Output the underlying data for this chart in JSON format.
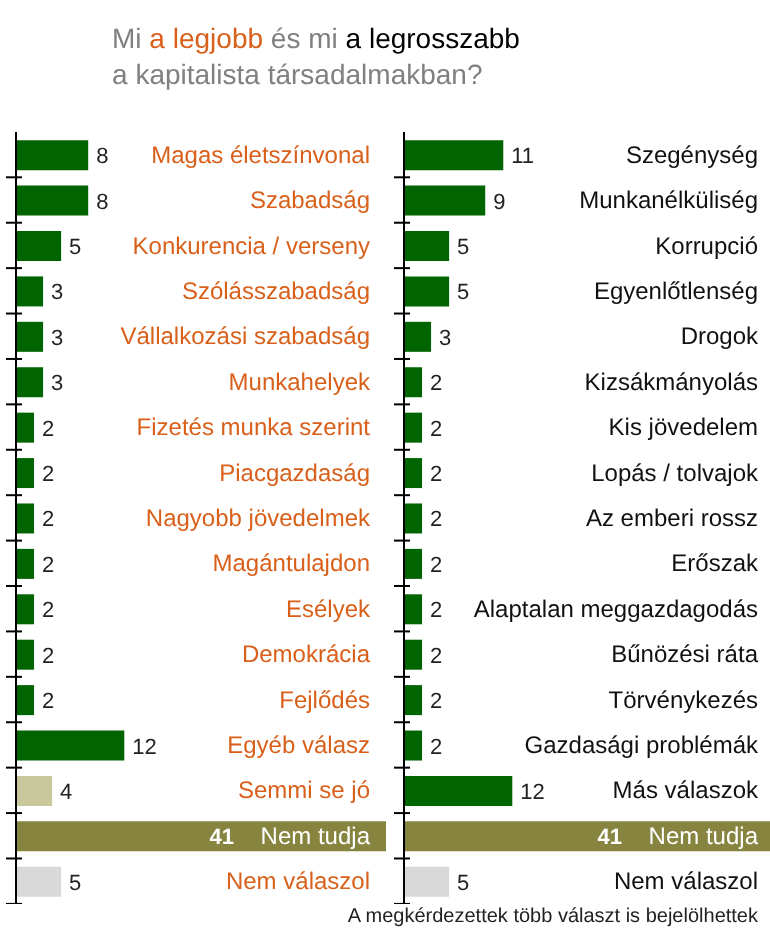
{
  "chart_data": [
    {
      "type": "bar",
      "orientation": "horizontal",
      "title": "Mi a legjobb és mi a legrosszabb a kapitalista társadalmakban?",
      "categories": [
        "Magas életszínvonal",
        "Szabadság",
        "Konkurencia / verseny",
        "Szólásszabadság",
        "Vállalkozási szabadság",
        "Munkahelyek",
        "Fizetés munka szerint",
        "Piacgazdaság",
        "Nagyobb jövedelmek",
        "Magántulajdon",
        "Esélyek",
        "Demokrácia",
        "Fejlődés",
        "Egyéb válasz",
        "Semmi se jó",
        "Nem tudja",
        "Nem válaszol"
      ],
      "values": [
        8,
        8,
        5,
        3,
        3,
        3,
        2,
        2,
        2,
        2,
        2,
        2,
        2,
        12,
        4,
        41,
        5
      ],
      "colors": [
        "#006400",
        "#006400",
        "#006400",
        "#006400",
        "#006400",
        "#006400",
        "#006400",
        "#006400",
        "#006400",
        "#006400",
        "#006400",
        "#006400",
        "#006400",
        "#006400",
        "#c9c79c",
        "#878440",
        "#d9d9d9"
      ],
      "xlim": [
        0,
        41
      ],
      "tick_labels": "y",
      "data_labels": true
    },
    {
      "type": "bar",
      "orientation": "horizontal",
      "categories": [
        "Szegénység",
        "Munkanélküliség",
        "Korrupció",
        "Egyenlőtlenség",
        "Drogok",
        "Kizsákmányolás",
        "Kis jövedelem",
        "Lopás /  tolvajok",
        "Az emberi rossz",
        "Erőszak",
        "Alaptalan meggazdagodás",
        "Bűnözési ráta",
        "Törvénykezés",
        "Gazdasági problémák",
        "Más válaszok",
        "Nem tudja",
        "Nem válaszol"
      ],
      "values": [
        11,
        9,
        5,
        5,
        3,
        2,
        2,
        2,
        2,
        2,
        2,
        2,
        2,
        2,
        12,
        41,
        5
      ],
      "colors": [
        "#006400",
        "#006400",
        "#006400",
        "#006400",
        "#006400",
        "#006400",
        "#006400",
        "#006400",
        "#006400",
        "#006400",
        "#006400",
        "#006400",
        "#006400",
        "#006400",
        "#006400",
        "#878440",
        "#d9d9d9"
      ],
      "xlim": [
        0,
        41
      ],
      "tick_labels": "y",
      "data_labels": true,
      "annotations": [
        "A megkérdezettek több választ is bejelölhettek"
      ]
    }
  ]
}
